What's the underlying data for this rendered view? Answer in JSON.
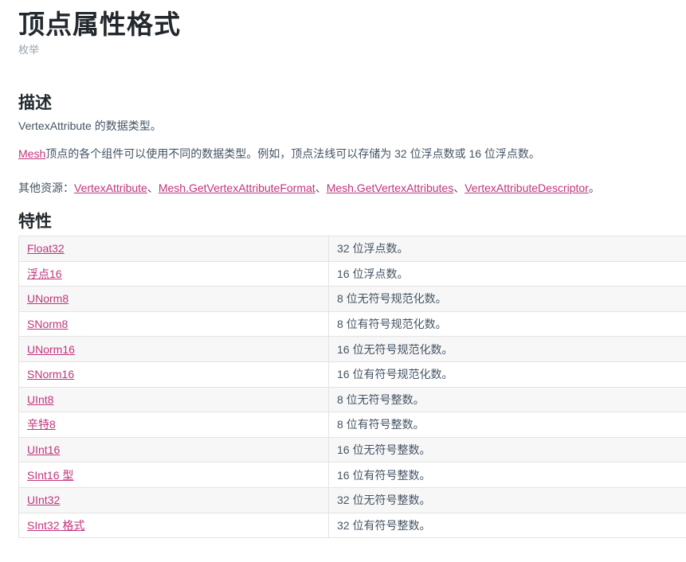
{
  "page": {
    "title": "顶点属性格式",
    "subtitle": "枚举"
  },
  "description": {
    "heading": "描述",
    "line1": "VertexAttribute 的数据类型。",
    "line2_link": "Mesh",
    "line2_text": "顶点的各个组件可以使用不同的数据类型。例如，顶点法线可以存储为 32 位浮点数或 16 位浮点数。",
    "see_also_label": "其他资源：",
    "see_also": [
      "VertexAttribute",
      "Mesh.GetVertexAttributeFormat",
      "Mesh.GetVertexAttributes",
      "VertexAttributeDescriptor"
    ],
    "separator": "、",
    "end": "。"
  },
  "properties": {
    "heading": "特性",
    "rows": [
      {
        "name": "Float32",
        "desc": "32 位浮点数。"
      },
      {
        "name": "浮点16",
        "desc": "16 位浮点数。"
      },
      {
        "name": "UNorm8",
        "desc": "8 位无符号规范化数。"
      },
      {
        "name": "SNorm8",
        "desc": "8 位有符号规范化数。"
      },
      {
        "name": "UNorm16",
        "desc": "16 位无符号规范化数。"
      },
      {
        "name": "SNorm16",
        "desc": "16 位有符号规范化数。"
      },
      {
        "name": "UInt8",
        "desc": "8 位无符号整数。"
      },
      {
        "name": "辛特8",
        "desc": "8 位有符号整数。"
      },
      {
        "name": "UInt16",
        "desc": "16 位无符号整数。"
      },
      {
        "name": "SInt16 型",
        "desc": "16 位有符号整数。"
      },
      {
        "name": "UInt32",
        "desc": "32 位无符号整数。"
      },
      {
        "name": "SInt32 格式",
        "desc": "32 位有符号整数。"
      }
    ]
  },
  "colors": {
    "link": "#c0357c",
    "text": "#455463",
    "heading": "#22282d",
    "stripe": "#f7f7f7"
  }
}
